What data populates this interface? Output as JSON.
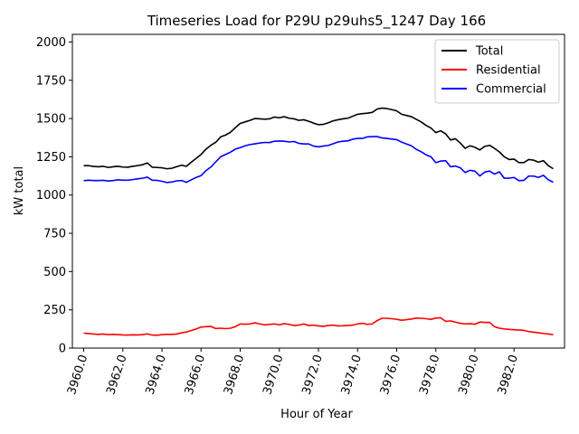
{
  "chart_data": {
    "type": "line",
    "title": "Timeseries Load for P29U p29uhs5_1247  Day 166",
    "xlabel": "Hour of Year",
    "ylabel": "kW total",
    "xlim": [
      3959.42,
      3984.58
    ],
    "ylim": [
      0,
      2050
    ],
    "x_ticks": [
      3960,
      3962,
      3964,
      3966,
      3968,
      3970,
      3972,
      3974,
      3976,
      3978,
      3980,
      3982
    ],
    "x_tick_labels": [
      "3960.0",
      "3962.0",
      "3964.0",
      "3966.0",
      "3968.0",
      "3970.0",
      "3972.0",
      "3974.0",
      "3976.0",
      "3978.0",
      "3980.0",
      "3982.0"
    ],
    "y_ticks": [
      0,
      250,
      500,
      750,
      1000,
      1250,
      1500,
      1750,
      2000
    ],
    "y_tick_labels": [
      "0",
      "250",
      "500",
      "750",
      "1000",
      "1250",
      "1500",
      "1750",
      "2000"
    ],
    "x_start": 3960,
    "x_step": 0.25,
    "legend_position": "top-right",
    "series": [
      {
        "name": "Total",
        "color": "#000000",
        "values": [
          1192,
          1192,
          1187,
          1185,
          1188,
          1180,
          1185,
          1188,
          1183,
          1182,
          1188,
          1192,
          1198,
          1210,
          1182,
          1180,
          1178,
          1172,
          1175,
          1185,
          1195,
          1188,
          1215,
          1240,
          1265,
          1300,
          1325,
          1345,
          1380,
          1392,
          1410,
          1440,
          1468,
          1478,
          1488,
          1500,
          1498,
          1496,
          1498,
          1510,
          1505,
          1512,
          1502,
          1498,
          1488,
          1492,
          1482,
          1470,
          1460,
          1462,
          1472,
          1485,
          1492,
          1498,
          1502,
          1515,
          1528,
          1532,
          1535,
          1540,
          1562,
          1568,
          1565,
          1558,
          1550,
          1528,
          1520,
          1512,
          1495,
          1478,
          1455,
          1438,
          1408,
          1420,
          1400,
          1360,
          1368,
          1340,
          1305,
          1322,
          1312,
          1295,
          1318,
          1325,
          1305,
          1282,
          1250,
          1232,
          1235,
          1212,
          1212,
          1232,
          1228,
          1215,
          1225,
          1192,
          1172
        ]
      },
      {
        "name": "Residential",
        "color": "#ff0000",
        "values": [
          98,
          95,
          92,
          90,
          92,
          88,
          90,
          88,
          86,
          85,
          87,
          86,
          88,
          93,
          85,
          84,
          88,
          90,
          90,
          92,
          100,
          105,
          115,
          125,
          138,
          140,
          142,
          128,
          130,
          127,
          130,
          140,
          158,
          156,
          158,
          165,
          158,
          152,
          155,
          158,
          152,
          160,
          155,
          148,
          150,
          158,
          148,
          150,
          145,
          142,
          148,
          150,
          145,
          146,
          148,
          150,
          158,
          162,
          155,
          158,
          180,
          195,
          195,
          192,
          188,
          182,
          186,
          190,
          196,
          195,
          192,
          188,
          196,
          198,
          175,
          178,
          170,
          162,
          158,
          160,
          156,
          170,
          168,
          168,
          140,
          130,
          125,
          122,
          120,
          118,
          116,
          108,
          104,
          100,
          96,
          92,
          88
        ]
      },
      {
        "name": "Commercial",
        "color": "#0000ff",
        "values": [
          1094,
          1097,
          1095,
          1095,
          1096,
          1092,
          1095,
          1100,
          1097,
          1097,
          1101,
          1106,
          1110,
          1117,
          1097,
          1096,
          1090,
          1082,
          1085,
          1093,
          1095,
          1083,
          1100,
          1115,
          1127,
          1160,
          1183,
          1217,
          1250,
          1265,
          1280,
          1300,
          1310,
          1322,
          1330,
          1335,
          1340,
          1344,
          1343,
          1352,
          1353,
          1352,
          1347,
          1350,
          1338,
          1334,
          1334,
          1320,
          1315,
          1320,
          1324,
          1335,
          1347,
          1352,
          1354,
          1365,
          1370,
          1370,
          1380,
          1382,
          1382,
          1373,
          1370,
          1366,
          1362,
          1346,
          1334,
          1322,
          1299,
          1283,
          1263,
          1250,
          1212,
          1222,
          1225,
          1185,
          1190,
          1178,
          1147,
          1162,
          1156,
          1125,
          1150,
          1157,
          1137,
          1152,
          1110,
          1110,
          1115,
          1094,
          1096,
          1124,
          1124,
          1115,
          1129,
          1100,
          1084
        ]
      }
    ]
  }
}
